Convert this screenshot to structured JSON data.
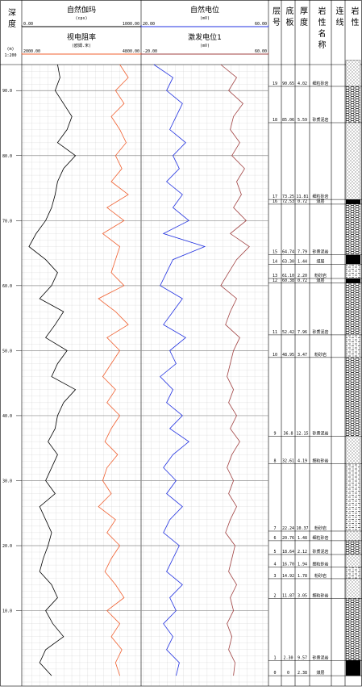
{
  "chart_data": {
    "type": "well_log",
    "depth_label": "深度",
    "depth_unit": "(m)",
    "scale": "1:200",
    "ylim": [
      94,
      -1.6
    ],
    "yticks": [
      {
        "value": 90,
        "label": "90.0"
      },
      {
        "value": 80,
        "label": "80.0"
      },
      {
        "value": 70,
        "label": "70.0"
      },
      {
        "value": 60,
        "label": "60.0"
      },
      {
        "value": 50,
        "label": "50.0"
      },
      {
        "value": 40,
        "label": "40.0"
      },
      {
        "value": 30,
        "label": "30.0"
      },
      {
        "value": 20,
        "label": "20.0"
      },
      {
        "value": 10,
        "label": "10.0"
      }
    ],
    "depths": [
      94,
      92,
      90,
      88,
      86,
      84,
      82,
      80,
      78,
      76,
      74,
      72,
      70,
      68,
      66,
      64,
      62,
      60,
      58,
      56,
      54,
      52,
      50,
      48,
      46,
      44,
      42,
      40,
      38,
      36,
      34,
      32,
      30,
      28,
      26,
      24,
      22,
      20,
      18,
      16,
      14,
      12,
      10,
      8,
      6,
      4,
      2,
      0
    ],
    "series": [
      {
        "name": "自然伽玛",
        "unit": "(cps)",
        "color": "#000000",
        "track": 0,
        "row": 0,
        "xlim": [
          0,
          1000
        ],
        "xticks": [
          {
            "value": 0,
            "label": "0.00"
          },
          {
            "value": 1000,
            "label": "1000.00"
          }
        ],
        "values": [
          300,
          320,
          280,
          350,
          420,
          380,
          300,
          450,
          350,
          300,
          280,
          250,
          200,
          120,
          60,
          200,
          300,
          250,
          150,
          350,
          280,
          200,
          380,
          300,
          250,
          450,
          350,
          300,
          280,
          220,
          300,
          250,
          200,
          280,
          150,
          200,
          250,
          220,
          180,
          150,
          250,
          300,
          200,
          260,
          350,
          200,
          150,
          250
        ]
      },
      {
        "name": "视电阻率",
        "unit": "(欧姆.米)",
        "color": "#f06030",
        "track": 0,
        "row": 1,
        "xlim": [
          2000,
          4800
        ],
        "xticks": [
          {
            "value": 2000,
            "label": "2000.00"
          },
          {
            "value": 4800,
            "label": "4800.00"
          }
        ],
        "values": [
          4300,
          4500,
          4200,
          4400,
          4100,
          4300,
          4450,
          4200,
          4350,
          4100,
          4500,
          4000,
          4400,
          3900,
          4300,
          4200,
          4100,
          4400,
          3800,
          4200,
          4500,
          4000,
          4300,
          4100,
          3900,
          4200,
          4000,
          4300,
          4100,
          3950,
          4250,
          4000,
          3900,
          4100,
          3800,
          4200,
          4000,
          4300,
          4100,
          3950,
          4200,
          4400,
          4000,
          4300,
          4100,
          4350,
          4200,
          4300
        ]
      },
      {
        "name": "自然电位",
        "unit": "(mV)",
        "color": "#2030e0",
        "track": 1,
        "row": 0,
        "xlim": [
          20,
          60
        ],
        "xticks": [
          {
            "value": 20,
            "label": "20.00"
          },
          {
            "value": 60,
            "label": "60.00"
          }
        ],
        "values": [
          24,
          30,
          28,
          33,
          31,
          29,
          34,
          30,
          32,
          28,
          33,
          30,
          35,
          27,
          40,
          30,
          28,
          26,
          33,
          30,
          27,
          34,
          29,
          31,
          26,
          30,
          28,
          33,
          29,
          35,
          30,
          27,
          31,
          28,
          33,
          29,
          27,
          32,
          30,
          28,
          33,
          29,
          31,
          27,
          30,
          28,
          32,
          31
        ]
      },
      {
        "name": "激发电位1",
        "unit": "(mV)",
        "color": "#a04040",
        "track": 1,
        "row": 1,
        "xlim": [
          -20,
          60
        ],
        "xticks": [
          {
            "value": -20,
            "label": "-20.00"
          },
          {
            "value": 60,
            "label": "60.00"
          }
        ],
        "values": [
          30,
          40,
          35,
          44,
          38,
          36,
          42,
          37,
          45,
          40,
          43,
          38,
          46,
          36,
          48,
          40,
          35,
          30,
          40,
          36,
          33,
          42,
          38,
          36,
          34,
          38,
          35,
          40,
          36,
          42,
          37,
          34,
          38,
          35,
          40,
          36,
          33,
          39,
          37,
          35,
          40,
          36,
          38,
          34,
          37,
          35,
          39,
          38
        ]
      }
    ],
    "columns": [
      "层号",
      "底板",
      "厚度",
      "岩性名称",
      "连线",
      "岩性"
    ],
    "layer_numbers": [
      19,
      18,
      17,
      16,
      15,
      14,
      13,
      12,
      11,
      10,
      9,
      8,
      7,
      6,
      5,
      4,
      3,
      2,
      1,
      0
    ],
    "bottoms": [
      90.65,
      85.06,
      73.25,
      72.53,
      64.74,
      63.3,
      61.1,
      60.38,
      52.42,
      48.95,
      36.8,
      32.61,
      22.24,
      20.76,
      18.64,
      16.7,
      14.92,
      11.87,
      2.3,
      0
    ],
    "bottom_labels": [
      "90.65",
      "85.06",
      "73.25",
      "72.53",
      "64.74",
      "63.30",
      "61.10",
      "60.38",
      "52.42",
      "48.95",
      "36.8",
      "32.61",
      "22.24",
      "20.76",
      "18.64",
      "16.70",
      "14.92",
      "11.87",
      "2.30",
      "0"
    ],
    "thicknesses": [
      4.02,
      5.59,
      11.81,
      0.72,
      7.79,
      1.44,
      2.2,
      0.72,
      7.96,
      3.47,
      12.15,
      4.19,
      10.37,
      1.48,
      2.12,
      1.94,
      1.78,
      3.05,
      9.57,
      2.38
    ],
    "thickness_labels": [
      "4.02",
      "5.59",
      "11.81",
      "0.72",
      "7.79",
      "1.44",
      "2.20",
      "0.72",
      "7.96",
      "3.47",
      "12.15",
      "4.19",
      "10.37",
      "1.48",
      "2.12",
      "1.94",
      "1.78",
      "3.05",
      "9.57",
      "2.38"
    ],
    "lithology": [
      "细粒砂岩",
      "砂质泥岩",
      "细粒砂岩",
      "煤层",
      "砂质泥岩",
      "煤层",
      "粉砂岩",
      "煤层",
      "砂质泥岩",
      "粉砂岩",
      "砂质泥岩",
      "细粒砂岩",
      "粉砂岩",
      "细粒砂岩",
      "砂质泥岩",
      "细粒砂岩",
      "粉砂岩",
      "细粒砂岩",
      "砂质泥岩",
      "煤层"
    ]
  }
}
